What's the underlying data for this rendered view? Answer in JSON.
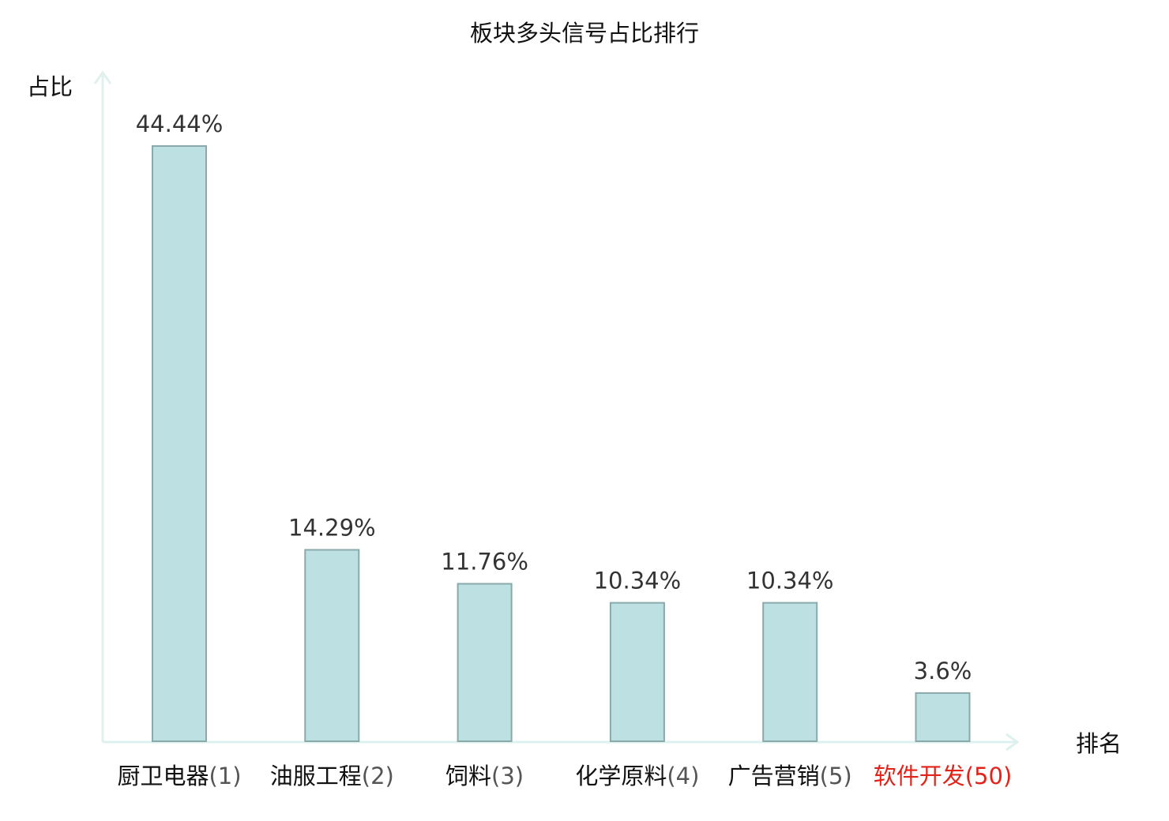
{
  "chart_data": {
    "type": "bar",
    "title": "板块多头信号占比排行",
    "ylabel": "占比",
    "xlabel": "排名",
    "ylim": [
      0,
      50
    ],
    "grid": false,
    "bar_color": "#bde0e3",
    "bar_border_color": "#8aa9ab",
    "axis_color": "#dff1ee",
    "highlight_color": "#e2231a",
    "categories": [
      {
        "name": "厨卫电器",
        "rank": "(1)",
        "value": 44.44,
        "label": "44.44%",
        "highlight": false
      },
      {
        "name": "油服工程",
        "rank": "(2)",
        "value": 14.29,
        "label": "14.29%",
        "highlight": false
      },
      {
        "name": "饲料",
        "rank": "(3)",
        "value": 11.76,
        "label": "11.76%",
        "highlight": false
      },
      {
        "name": "化学原料",
        "rank": "(4)",
        "value": 10.34,
        "label": "10.34%",
        "highlight": false
      },
      {
        "name": "广告营销",
        "rank": "(5)",
        "value": 10.34,
        "label": "10.34%",
        "highlight": false
      },
      {
        "name": "软件开发",
        "rank": "(50)",
        "value": 3.6,
        "label": "3.6%",
        "highlight": true
      }
    ]
  }
}
